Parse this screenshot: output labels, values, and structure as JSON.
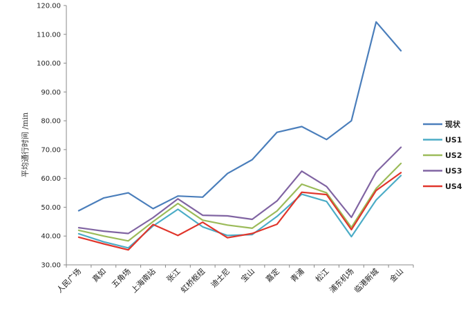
{
  "chart_data": {
    "type": "line",
    "ylabel": "平均通行时间 /min",
    "ylim": [
      30,
      120
    ],
    "ytick_step": 10,
    "ytick_labels": [
      "30.00",
      "40.00",
      "50.00",
      "60.00",
      "70.00",
      "80.00",
      "90.00",
      "100.00",
      "110.00",
      "120.00"
    ],
    "grid": false,
    "legend_position": "right",
    "categories": [
      "人民广场",
      "真如",
      "五角场",
      "上海南站",
      "张江",
      "虹桥枢纽",
      "迪士尼",
      "宝山",
      "嘉定",
      "青浦",
      "松江",
      "浦东机场",
      "临港新城",
      "金山"
    ],
    "series": [
      {
        "name": "现状",
        "color": "#4a7ebb",
        "values": [
          48.8,
          53.2,
          55.0,
          49.5,
          53.9,
          53.5,
          61.7,
          66.5,
          76.0,
          78.0,
          73.5,
          80.0,
          114.3,
          104.3
        ]
      },
      {
        "name": "US1",
        "color": "#4bacc6",
        "values": [
          40.8,
          38.0,
          35.9,
          43.5,
          49.3,
          43.2,
          40.2,
          40.5,
          46.8,
          54.5,
          52.0,
          39.8,
          52.5,
          61.0
        ]
      },
      {
        "name": "US2",
        "color": "#9bbb59",
        "values": [
          42.0,
          40.0,
          38.3,
          45.0,
          51.3,
          45.5,
          43.8,
          42.7,
          48.7,
          58.0,
          55.0,
          43.0,
          56.5,
          65.2
        ]
      },
      {
        "name": "US3",
        "color": "#8064a2",
        "values": [
          42.9,
          41.7,
          40.9,
          46.4,
          52.9,
          47.2,
          47.0,
          45.8,
          52.2,
          62.5,
          57.2,
          46.5,
          62.2,
          70.8
        ]
      },
      {
        "name": "US4",
        "color": "#e0352b",
        "values": [
          39.6,
          37.3,
          35.2,
          44.0,
          40.2,
          44.8,
          39.4,
          40.9,
          44.1,
          55.2,
          54.4,
          42.2,
          55.8,
          62.0
        ]
      }
    ]
  }
}
